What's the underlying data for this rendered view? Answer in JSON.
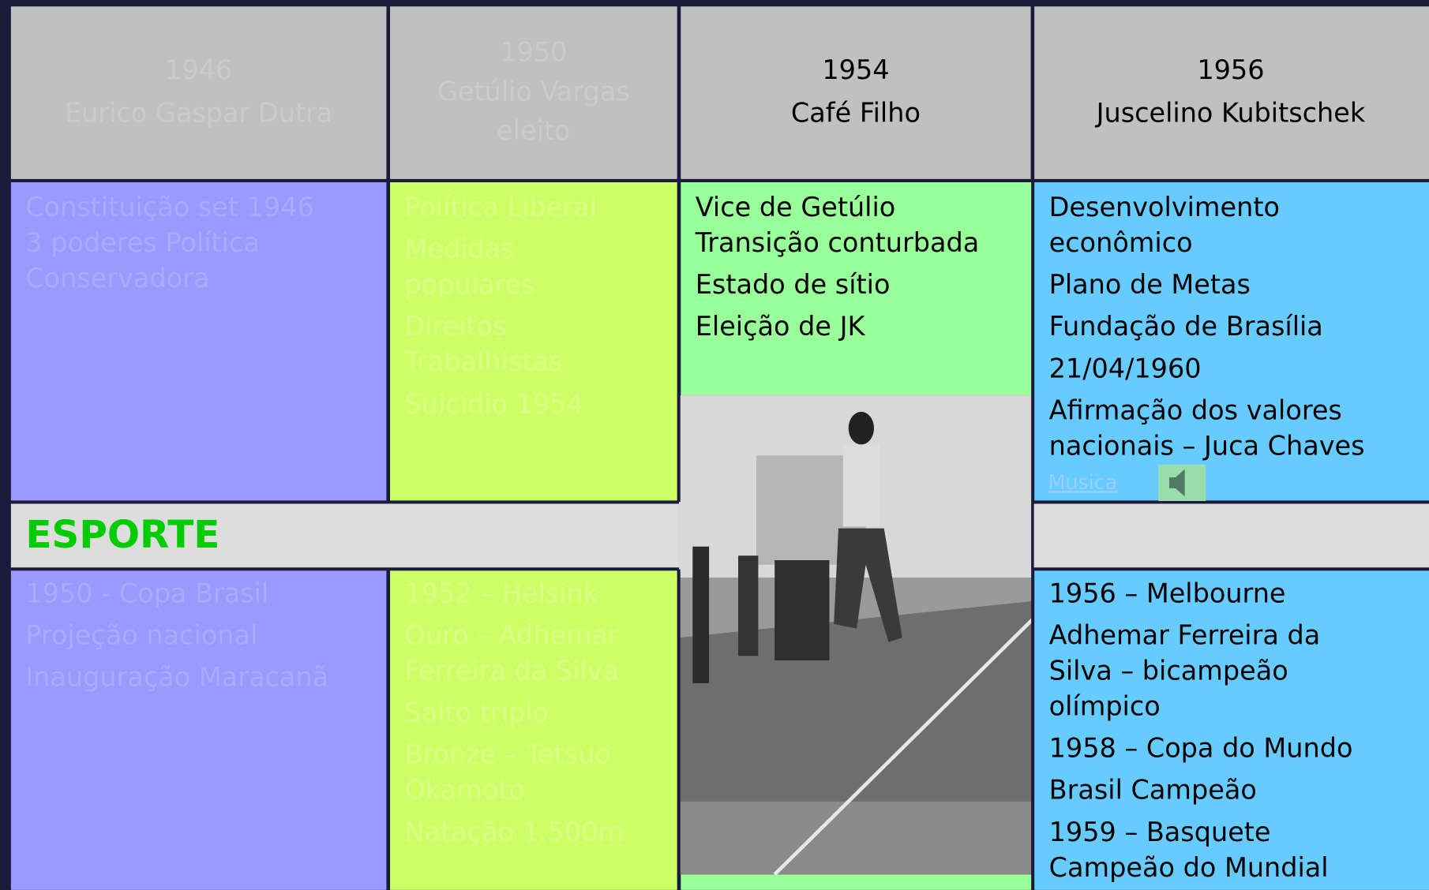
{
  "header": {
    "columns": [
      {
        "lines": [
          "1946",
          "Eurico Gaspar Dutra"
        ]
      },
      {
        "lines": [
          "1950",
          "Getúlio Vargas",
          "eleito"
        ]
      },
      {
        "lines": [
          "1954",
          "Café Filho"
        ]
      },
      {
        "lines": [
          "1956",
          "Juscelino Kubitschek"
        ]
      }
    ]
  },
  "politics": {
    "columns": [
      {
        "paragraphs": [
          [
            "Constituição set 1946",
            "3 poderes Política",
            "Conservadora"
          ]
        ]
      },
      {
        "paragraphs": [
          [
            "Política Liberal"
          ],
          [
            "Medidas",
            "populares"
          ],
          [
            "Direitos",
            "Trabalhistas"
          ],
          [
            "Suicídio 1954"
          ]
        ]
      },
      {
        "paragraphs": [
          [
            "Vice de Getúlio",
            "Transição conturbada"
          ],
          [
            "Estado de sítio"
          ],
          [
            "Eleição de JK"
          ]
        ]
      },
      {
        "paragraphs": [
          [
            "Desenvolvimento",
            "econômico"
          ],
          [
            "Plano de Metas"
          ],
          [
            "Fundação de Brasília"
          ],
          [
            "21/04/1960"
          ],
          [
            "Afirmação dos valores",
            "nacionais – Juca Chaves"
          ]
        ]
      }
    ],
    "music_link": "Musica"
  },
  "sport": {
    "heading": "ESPORTE",
    "columns": [
      {
        "paragraphs": [
          [
            "1950 - Copa Brasil"
          ],
          [
            "Projeção nacional"
          ],
          [
            "Inauguração Maracanã"
          ]
        ]
      },
      {
        "paragraphs": [
          [
            "1952 – Helsink"
          ],
          [
            "Ouro – Adhemar",
            "Ferreira da Silva"
          ],
          [
            "Salto triplo"
          ],
          [
            "Bronze – Tetsuo",
            "Okamoto"
          ],
          [
            "Natação 1.500m"
          ]
        ]
      },
      null,
      {
        "paragraphs": [
          [
            "1956 – Melbourne"
          ],
          [
            "Adhemar Ferreira da",
            "Silva – bicampeão",
            "olímpico"
          ],
          [
            "1958 – Copa do Mundo"
          ],
          [
            "Brasil Campeão"
          ],
          [
            "1959 – Basquete",
            "Campeão do Mundial"
          ]
        ]
      }
    ]
  }
}
